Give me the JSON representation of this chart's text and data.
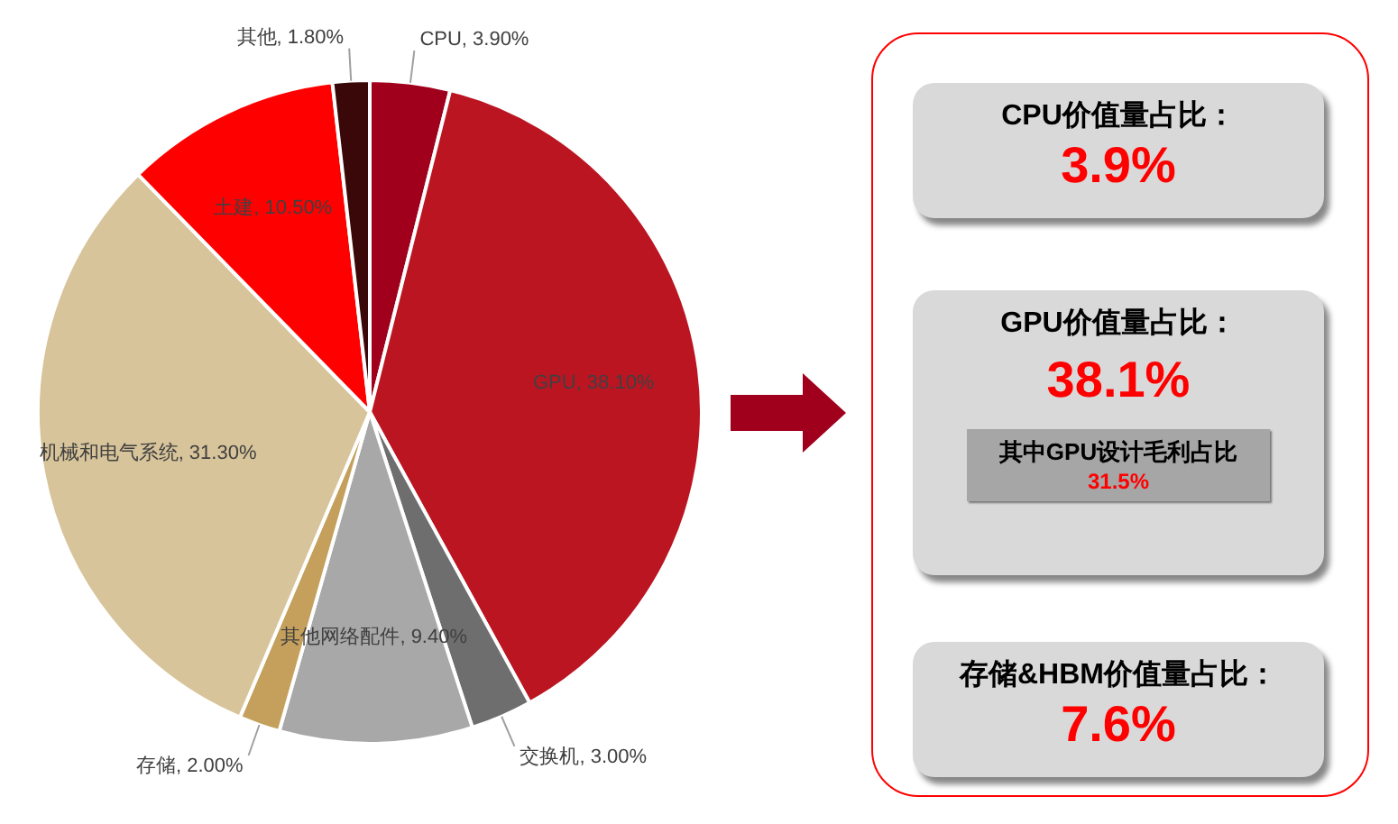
{
  "chart_data": [
    {
      "type": "pie",
      "categories": [
        "CPU",
        "GPU",
        "交换机",
        "其他网络配件",
        "存储",
        "机械和电气系统",
        "土建",
        "其他"
      ],
      "values": [
        3.9,
        38.1,
        3.0,
        9.4,
        2.0,
        31.3,
        10.5,
        1.8
      ],
      "value_labels": [
        "3.90%",
        "38.10%",
        "3.00%",
        "9.40%",
        "2.00%",
        "31.30%",
        "10.50%",
        "1.80%"
      ],
      "colors": [
        "#a0001c",
        "#bb1522",
        "#6e6e6e",
        "#a8a8a8",
        "#c4a05c",
        "#d8c49a",
        "#ff0000",
        "#3a0808"
      ],
      "legend": false
    },
    {
      "type": "other",
      "annotations": [
        "CPU价值量占比：",
        "3.9%",
        "GPU价值量占比：",
        "38.1%",
        "其中GPU设计毛利占比",
        "31.5%",
        "存储&HBM价值量占比：",
        "7.6%"
      ]
    }
  ]
}
